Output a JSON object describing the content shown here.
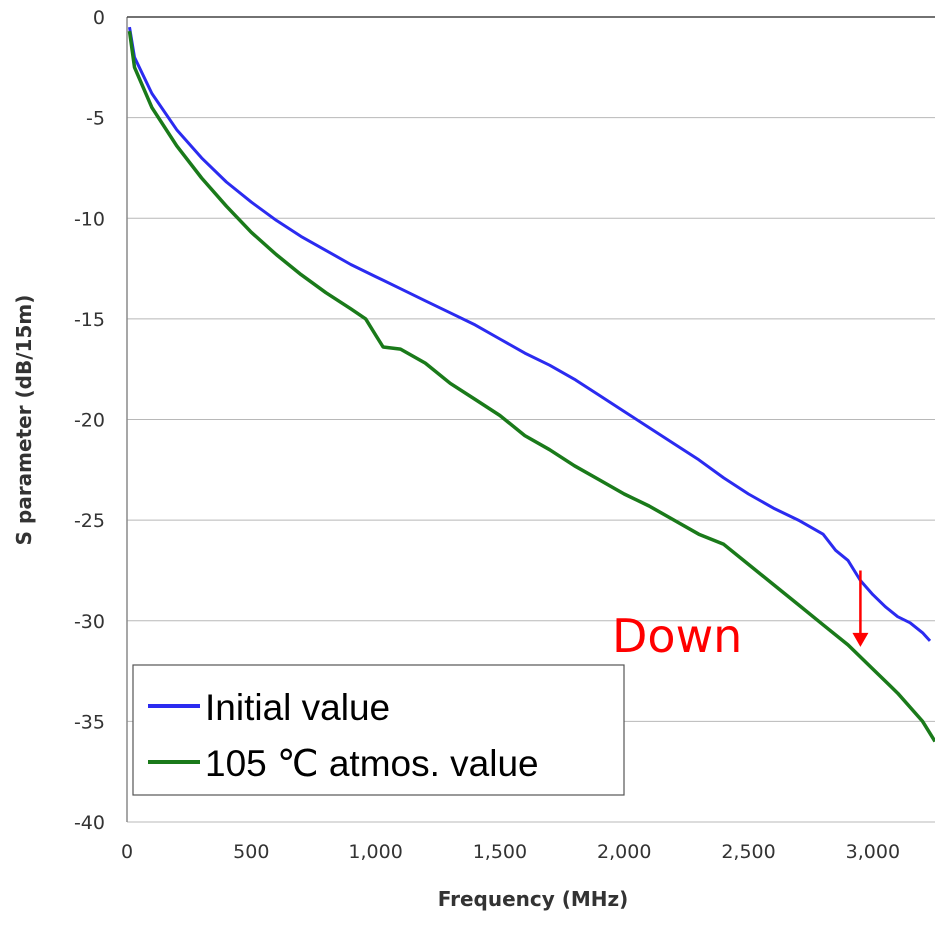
{
  "chart_data": {
    "type": "line",
    "xlabel": "Frequency (MHz)",
    "ylabel": "S parameter (dB/15m)",
    "xlim": [
      0,
      3250
    ],
    "ylim": [
      -40,
      0
    ],
    "x_ticks": [
      0,
      500,
      1000,
      1500,
      2000,
      2500,
      3000
    ],
    "x_tick_labels": [
      "0",
      "500",
      "1,000",
      "1,500",
      "2,000",
      "2,500",
      "3,000"
    ],
    "y_ticks": [
      0,
      -5,
      -10,
      -15,
      -20,
      -25,
      -30,
      -35,
      -40
    ],
    "y_tick_labels": [
      "0",
      "-5",
      "-10",
      "-15",
      "-20",
      "-25",
      "-30",
      "-35",
      "-40"
    ],
    "grid": "horizontal",
    "legend_position": "bottom-left",
    "series": [
      {
        "name": "Initial value",
        "color": "#2b2bf0",
        "points": [
          [
            10,
            -0.5
          ],
          [
            30,
            -2.0
          ],
          [
            100,
            -3.8
          ],
          [
            200,
            -5.6
          ],
          [
            300,
            -7.0
          ],
          [
            400,
            -8.2
          ],
          [
            500,
            -9.2
          ],
          [
            600,
            -10.1
          ],
          [
            700,
            -10.9
          ],
          [
            800,
            -11.6
          ],
          [
            900,
            -12.3
          ],
          [
            1000,
            -12.9
          ],
          [
            1100,
            -13.5
          ],
          [
            1200,
            -14.1
          ],
          [
            1300,
            -14.7
          ],
          [
            1400,
            -15.3
          ],
          [
            1500,
            -16.0
          ],
          [
            1600,
            -16.7
          ],
          [
            1700,
            -17.3
          ],
          [
            1800,
            -18.0
          ],
          [
            1900,
            -18.8
          ],
          [
            2000,
            -19.6
          ],
          [
            2100,
            -20.4
          ],
          [
            2200,
            -21.2
          ],
          [
            2300,
            -22.0
          ],
          [
            2400,
            -22.9
          ],
          [
            2500,
            -23.7
          ],
          [
            2600,
            -24.4
          ],
          [
            2700,
            -25.0
          ],
          [
            2800,
            -25.7
          ],
          [
            2850,
            -26.5
          ],
          [
            2900,
            -27.0
          ],
          [
            2950,
            -28.0
          ],
          [
            3000,
            -28.7
          ],
          [
            3050,
            -29.3
          ],
          [
            3100,
            -29.8
          ],
          [
            3150,
            -30.1
          ],
          [
            3200,
            -30.6
          ],
          [
            3230,
            -31.0
          ]
        ]
      },
      {
        "name": "105 ℃ atmos. value",
        "color": "#1a7a1a",
        "points": [
          [
            10,
            -0.7
          ],
          [
            30,
            -2.5
          ],
          [
            100,
            -4.5
          ],
          [
            200,
            -6.4
          ],
          [
            300,
            -8.0
          ],
          [
            400,
            -9.4
          ],
          [
            500,
            -10.7
          ],
          [
            600,
            -11.8
          ],
          [
            700,
            -12.8
          ],
          [
            800,
            -13.7
          ],
          [
            900,
            -14.5
          ],
          [
            960,
            -15.0
          ],
          [
            1000,
            -15.8
          ],
          [
            1030,
            -16.4
          ],
          [
            1100,
            -16.5
          ],
          [
            1200,
            -17.2
          ],
          [
            1300,
            -18.2
          ],
          [
            1400,
            -19.0
          ],
          [
            1500,
            -19.8
          ],
          [
            1600,
            -20.8
          ],
          [
            1700,
            -21.5
          ],
          [
            1800,
            -22.3
          ],
          [
            1900,
            -23.0
          ],
          [
            2000,
            -23.7
          ],
          [
            2100,
            -24.3
          ],
          [
            2200,
            -25.0
          ],
          [
            2300,
            -25.7
          ],
          [
            2400,
            -26.2
          ],
          [
            2500,
            -27.2
          ],
          [
            2600,
            -28.2
          ],
          [
            2700,
            -29.2
          ],
          [
            2800,
            -30.2
          ],
          [
            2900,
            -31.2
          ],
          [
            3000,
            -32.4
          ],
          [
            3100,
            -33.6
          ],
          [
            3200,
            -35.0
          ],
          [
            3250,
            -36.0
          ]
        ]
      }
    ],
    "annotations": [
      {
        "text": "Down",
        "arrow_from": [
          2950,
          -27.5
        ],
        "arrow_to": [
          2950,
          -31.3
        ],
        "color": "#ff0000"
      }
    ]
  }
}
